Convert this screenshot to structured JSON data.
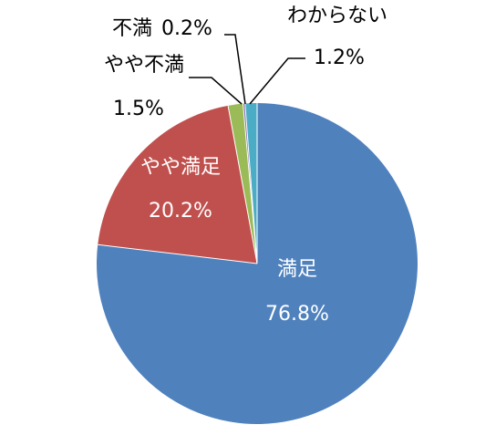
{
  "chart_data": {
    "type": "pie",
    "start_angle_deg": 0,
    "direction": "clockwise",
    "slices": [
      {
        "name": "満足",
        "value": 76.8,
        "value_label": "76.8%",
        "color": "#4F81BD",
        "label_position": "inside"
      },
      {
        "name": "やや満足",
        "value": 20.2,
        "value_label": "20.2%",
        "color": "#C0504D",
        "label_position": "inside"
      },
      {
        "name": "やや不満",
        "value": 1.5,
        "value_label": "1.5%",
        "color": "#9BBB59",
        "label_position": "outside"
      },
      {
        "name": "不満",
        "value": 0.2,
        "value_label": "0.2%",
        "color": "#8064A2",
        "label_position": "outside"
      },
      {
        "name": "わからない",
        "value": 1.2,
        "value_label": "1.2%",
        "color": "#4BACC6",
        "label_position": "outside"
      }
    ],
    "legend": "none"
  }
}
